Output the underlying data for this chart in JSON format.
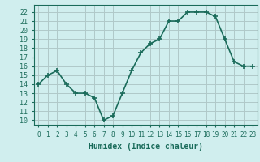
{
  "x": [
    0,
    1,
    2,
    3,
    4,
    5,
    6,
    7,
    8,
    9,
    10,
    11,
    12,
    13,
    14,
    15,
    16,
    17,
    18,
    19,
    20,
    21,
    22,
    23
  ],
  "y": [
    14,
    15,
    15.5,
    14,
    13,
    13,
    12.5,
    10,
    10.5,
    13,
    15.5,
    17.5,
    18.5,
    19,
    21,
    21,
    22,
    22,
    22,
    21.5,
    19,
    16.5,
    16,
    16
  ],
  "line_color": "#1a6b5a",
  "bg_color": "#d0eeee",
  "grid_color": "#b0c8c8",
  "xlabel": "Humidex (Indice chaleur)",
  "ylim": [
    9.5,
    22.8
  ],
  "xlim": [
    -0.5,
    23.5
  ],
  "yticks": [
    10,
    11,
    12,
    13,
    14,
    15,
    16,
    17,
    18,
    19,
    20,
    21,
    22
  ],
  "xticks": [
    0,
    1,
    2,
    3,
    4,
    5,
    6,
    7,
    8,
    9,
    10,
    11,
    12,
    13,
    14,
    15,
    16,
    17,
    18,
    19,
    20,
    21,
    22,
    23
  ],
  "marker": "+",
  "marker_size": 4,
  "line_width": 1.2,
  "tick_color": "#1a6b5a",
  "label_color": "#1a6b5a"
}
